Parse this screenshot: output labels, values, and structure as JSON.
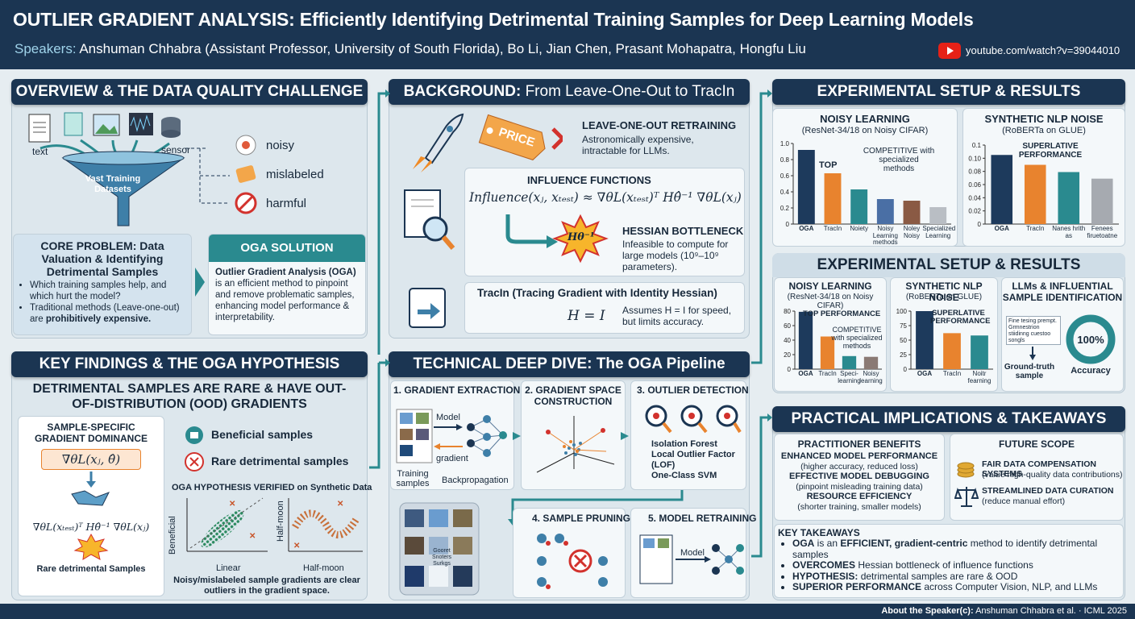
{
  "header": {
    "title": "OUTLIER GRADIENT ANALYSIS: Efficiently Identifying Detrimental Training Samples for Deep Learning Models",
    "speakers_label": "Speakers:",
    "speakers": "Anshuman Chhabra (Assistant Professor, University of South Florida), Bo Li, Jian Chen, Prasant Mohapatra, Hongfu Liu",
    "link": "youtube.com/watch?v=39044010"
  },
  "overview": {
    "title": "OVERVIEW & THE DATA QUALITY CHALLENGE",
    "sources": [
      "text",
      "sensor"
    ],
    "funnel": "Vast Training Datasets",
    "issues": [
      "noisy",
      "mislabeled",
      "harmful"
    ],
    "core_problem": {
      "title": "CORE PROBLEM: Data Valuation & Identifying Detrimental Samples",
      "bullet1": "Which training samples help, and which hurt the model?",
      "bullet2": "Traditional methods (Leave-one-out) are",
      "emphasis": "prohibitively expensive."
    },
    "solution": {
      "title": "OGA SOLUTION",
      "lead": "Outlier Gradient Analysis (OGA)",
      "text": "is an efficient method to pinpoint and remove problematic samples, enhancing model performance & interpretability."
    }
  },
  "findings": {
    "title": "KEY FINDINGS & THE OGA HYPOTHESIS",
    "headline": "DETRIMENTAL SAMPLES ARE RARE & HAVE OUT-OF-DISTRIBUTION (OOD) GRADIENTS",
    "dominance_title": "SAMPLE-SPECIFIC GRADIENT DOMINANCE",
    "formula1": "∇θL(xⱼ, θ̂)",
    "formula2": "∇θL(xₜₑₛₜ)ᵀ Hθ̂⁻¹ ∇θL(xⱼ)",
    "rare_label": "Rare detrimental Samples",
    "legend": [
      "Beneficial samples",
      "Rare detrimental samples"
    ],
    "verified_title": "OGA HYPOTHESIS VERIFIED on Synthetic Data",
    "plot1": {
      "ylabel": "Beneficial",
      "xlabel": "Linear"
    },
    "plot2": {
      "ylabel": "Half-moon",
      "xlabel": "Half-moon"
    },
    "caption": "Noisy/mislabeled sample gradients are clear outliers in the gradient space."
  },
  "background": {
    "title_bold": "BACKGROUND:",
    "title": "From Leave-One-Out to TracIn",
    "price": "PRICE",
    "loo_title": "LEAVE-ONE-OUT RETRAINING",
    "loo_text": "Astronomically expensive, intractable for LLMs.",
    "influence_title": "INFLUENCE FUNCTIONS",
    "influence_formula": "Influence(xⱼ, xₜₑₛₜ) ≈ ∇θL(xₜₑₛₜ)ᵀ Hθ̂⁻¹ ∇θL(xⱼ)",
    "hessian_symbol": "Hθ⁻¹",
    "hessian_title": "HESSIAN BOTTLENECK",
    "hessian_text": "Infeasible to compute for large models (10⁹–10⁹ parameters).",
    "tracin_title": "TracIn (Tracing Gradient with Identity Hessian)",
    "tracin_formula": "H = I",
    "tracin_text": "Assumes H = I for speed, but limits accuracy."
  },
  "pipeline": {
    "title": "TECHNICAL DEEP DIVE: The OGA Pipeline",
    "step1": {
      "title": "1. GRADIENT EXTRACTION",
      "model": "Model",
      "gradient": "gradient",
      "samples": "Training samples",
      "backprop": "Backpropagation"
    },
    "step2": {
      "title": "2. GRADIENT SPACE CONSTRUCTION"
    },
    "step3": {
      "title": "3. OUTLIER DETECTION",
      "methods": [
        "Isolation Forest",
        "Local Outlier Factor (LOF)",
        "One-Class SVM"
      ]
    },
    "stack_label": "Gooret Snoters Surkgs",
    "step4": {
      "title": "4. SAMPLE PRUNING"
    },
    "step5": {
      "title": "5. MODEL RETRAINING",
      "model": "Model"
    }
  },
  "results": {
    "title": "EXPERIMENTAL SETUP & RESULTS"
  },
  "results2": {
    "title": "EXPERIMENTAL SETUP & RESULTS",
    "llm_title": "LLMs & INFLUENTIAL SAMPLE IDENTIFICATION",
    "prompt": "Fine tesing prempt. Grmnestrion stiidinng cuestoo songls",
    "ground_truth": "Ground-truth sample",
    "gauge": "100%",
    "gauge_caption": "Accuracy"
  },
  "implications": {
    "title": "PRACTICAL IMPLICATIONS & TAKEAWAYS",
    "benefits_title": "PRACTITIONER BENEFITS",
    "benefits": [
      {
        "title": "ENHANCED MODEL PERFORMANCE",
        "text": "(higher accuracy, reduced loss)"
      },
      {
        "title": "EFFECTIVE MODEL DEBUGGING",
        "text": "(pinpoint misleading training data)"
      },
      {
        "title": "RESOURCE EFFICIENCY",
        "text": "(shorter training, smaller models)"
      }
    ],
    "future_title": "FUTURE SCOPE",
    "future": [
      {
        "title": "FAIR DATA COMPENSATION SYSTEMS",
        "text": "(value high-quality data contributions)"
      },
      {
        "title": "STREAMLINED DATA CURATION",
        "text": "(reduce manual effort)"
      }
    ],
    "takeaways_title": "KEY TAKEAWAYS",
    "takeaways": [
      [
        "OGA",
        " is an ",
        "EFFICIENT, gradient-centric",
        " method to identify detrimental samples"
      ],
      [
        "OVERCOMES",
        " Hessian bottleneck of influence functions"
      ],
      [
        "HYPOTHESIS:",
        " detrimental samples are rare & OOD"
      ],
      [
        "SUPERIOR PERFORMANCE",
        " across Computer Vision, NLP, and LLMs"
      ]
    ]
  },
  "footer": {
    "label": "About the Speaker(c):",
    "text": "Anshuman Chhabra et al. · ICML 2025"
  },
  "chart_data": [
    {
      "type": "bar",
      "title": "NOISY LEARNING",
      "subtitle": "(ResNet-34/18 on Noisy CIFAR)",
      "categories": [
        "OGA",
        "TracIn",
        "Noiety",
        "Noisy Learning methods",
        "Noley Noisy",
        "Specialized Learning"
      ],
      "values": [
        0.92,
        0.63,
        0.43,
        0.31,
        0.29,
        0.21
      ],
      "colors": [
        "#1d3a5c",
        "#e8832e",
        "#2a8a8f",
        "#4a6fa5",
        "#8a5a44",
        "#b9bec4"
      ],
      "ylim": [
        0,
        1.0
      ],
      "yticks": [
        0,
        0.2,
        0.4,
        0.6,
        0.8,
        {
          "value": 1.0,
          "label": "1.0"
        }
      ],
      "annotations": [
        "TOP",
        "COMPETITIVE with specialized methods"
      ]
    },
    {
      "type": "bar",
      "title": "SYNTHETIC NLP NOISE",
      "subtitle": "(RoBERTa on GLUE)",
      "categories": [
        "OGA",
        "TracIn",
        "Nanes hrith as",
        "Fenees firuetoatne"
      ],
      "values": [
        0.105,
        0.09,
        0.079,
        0.069
      ],
      "colors": [
        "#1d3a5c",
        "#e8832e",
        "#2a8a8f",
        "#a6aab0"
      ],
      "ylim": [
        0,
        0.12
      ],
      "yticks": [
        0,
        0.02,
        0.04,
        0.06,
        0.08,
        {
          "value": 0.1,
          "label": "0.10"
        },
        {
          "value": 0.12,
          "label": "0.1"
        }
      ],
      "annotations": [
        "SUPERLATIVE PERFORMANCE"
      ]
    },
    {
      "type": "bar",
      "title": "NOISY LEARNING",
      "subtitle": "(ResNet-34/18 on Noisy CIFAR)",
      "categories": [
        "OGA",
        "TracIn",
        "Speci- learning",
        "Noisy learning"
      ],
      "values": [
        79,
        45,
        18,
        17
      ],
      "colors": [
        "#1d3a5c",
        "#e8832e",
        "#2a8a8f",
        "#8a7a74"
      ],
      "ylim": [
        0,
        80
      ],
      "yticks": [
        0,
        20,
        40,
        60,
        80
      ],
      "annotations": [
        "TOP PERFORMANCE",
        "COMPETITIVE with specialized methods"
      ]
    },
    {
      "type": "bar",
      "title": "SYNTHETIC NLP NOISE",
      "subtitle": "(RoBERTa on GLUE)",
      "categories": [
        "OGA",
        "TracIn",
        "Noitr fearning"
      ],
      "values": [
        100,
        62,
        58
      ],
      "colors": [
        "#1d3a5c",
        "#e8832e",
        "#2a8a8f"
      ],
      "ylim": [
        0,
        100
      ],
      "yticks": [
        0,
        25,
        50,
        75,
        100
      ],
      "annotations": [
        "SUPERLATIVE PERFORMANCE"
      ]
    }
  ]
}
